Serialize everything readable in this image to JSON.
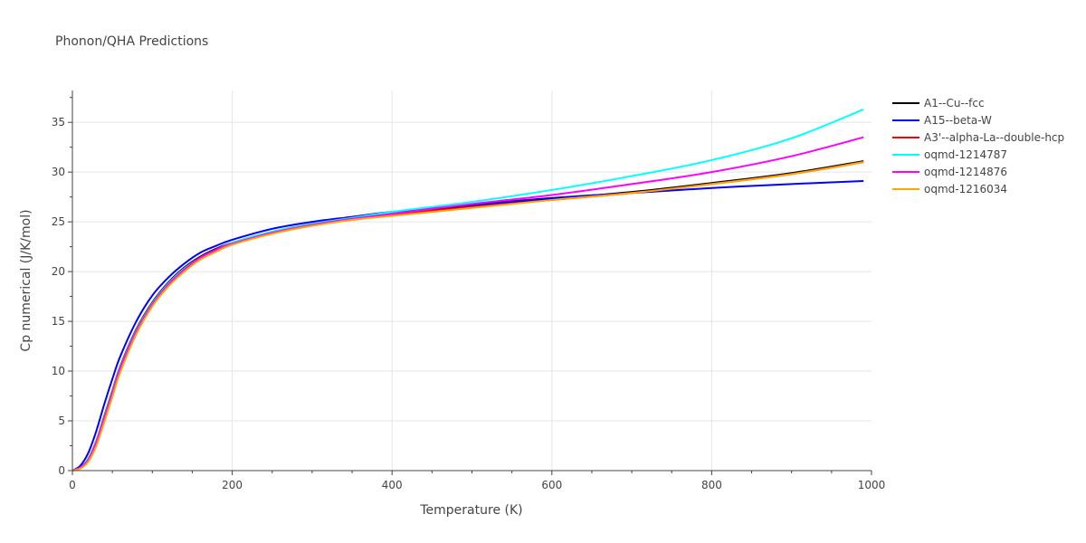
{
  "chart_data": {
    "type": "line",
    "title": "Phonon/QHA Predictions",
    "xlabel": "Temperature (K)",
    "ylabel": "Cp numerical (J/K/mol)",
    "xlim": [
      0,
      1000
    ],
    "ylim": [
      0,
      38.2
    ],
    "x_ticks": [
      0,
      200,
      400,
      600,
      800,
      1000
    ],
    "y_ticks": [
      0,
      5,
      10,
      15,
      20,
      25,
      30,
      35
    ],
    "grid": true,
    "legend_position": "top-right",
    "x": [
      0,
      10,
      20,
      30,
      40,
      50,
      60,
      80,
      100,
      120,
      140,
      160,
      180,
      200,
      250,
      300,
      350,
      400,
      500,
      600,
      700,
      800,
      900,
      990
    ],
    "series": [
      {
        "name": "A1--Cu--fcc",
        "color": "#000000",
        "values": [
          0,
          0.3,
          1.2,
          3.0,
          5.5,
          8.0,
          10.5,
          14.2,
          16.9,
          18.9,
          20.4,
          21.5,
          22.3,
          22.9,
          24.0,
          24.8,
          25.3,
          25.8,
          26.6,
          27.3,
          28.0,
          28.9,
          29.9,
          31.1
        ]
      },
      {
        "name": "A15--beta-W",
        "color": "#0000ff",
        "values": [
          0,
          0.5,
          1.8,
          4.0,
          6.7,
          9.2,
          11.5,
          15.0,
          17.6,
          19.4,
          20.8,
          21.9,
          22.6,
          23.2,
          24.3,
          25.0,
          25.5,
          26.0,
          26.7,
          27.4,
          27.9,
          28.4,
          28.8,
          29.1
        ]
      },
      {
        "name": "A3'--alpha-La--double-hcp",
        "color": "#ff0000",
        "values": [
          0,
          0.3,
          1.1,
          2.8,
          5.2,
          7.7,
          10.2,
          13.9,
          16.6,
          18.6,
          20.1,
          21.3,
          22.1,
          22.8,
          23.9,
          24.7,
          25.2,
          25.7,
          26.5,
          27.2,
          27.9,
          28.8,
          29.8,
          31.0
        ]
      },
      {
        "name": "oqmd-1214787",
        "color": "#00ffff",
        "values": [
          0,
          0.3,
          1.2,
          3.0,
          5.4,
          7.9,
          10.4,
          14.1,
          16.8,
          18.8,
          20.3,
          21.4,
          22.2,
          22.9,
          24.0,
          24.8,
          25.4,
          26.0,
          27.0,
          28.2,
          29.6,
          31.2,
          33.4,
          36.3
        ]
      },
      {
        "name": "oqmd-1214876",
        "color": "#ff00ff",
        "values": [
          0,
          0.3,
          1.1,
          2.9,
          5.3,
          7.8,
          10.3,
          14.0,
          16.7,
          18.7,
          20.2,
          21.4,
          22.2,
          22.8,
          23.9,
          24.7,
          25.3,
          25.8,
          26.8,
          27.7,
          28.8,
          30.0,
          31.6,
          33.5
        ]
      },
      {
        "name": "oqmd-1216034",
        "color": "#ffa500",
        "values": [
          0,
          0.2,
          0.9,
          2.5,
          4.9,
          7.4,
          9.9,
          13.7,
          16.5,
          18.5,
          20.0,
          21.2,
          22.0,
          22.7,
          23.8,
          24.6,
          25.2,
          25.6,
          26.4,
          27.2,
          27.9,
          28.8,
          29.8,
          31.0
        ]
      }
    ]
  }
}
